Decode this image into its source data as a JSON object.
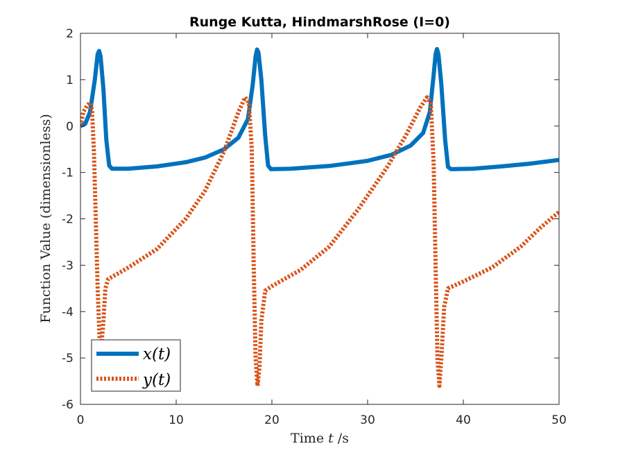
{
  "chart_data": {
    "type": "line",
    "title": "Runge Kutta, HindmarshRose (I=0)",
    "xlabel": "Time $t$ /s",
    "xlabel_parts": {
      "main": "Time ",
      "var": "t",
      "unit": " /s"
    },
    "ylabel": "Function Value (dimensionless)",
    "xlim": [
      0,
      50
    ],
    "ylim": [
      -6,
      2
    ],
    "xticks": [
      0,
      10,
      20,
      30,
      40,
      50
    ],
    "yticks": [
      2,
      1,
      0,
      -1,
      -2,
      -3,
      -4,
      -5,
      -6
    ],
    "xtick_labels": [
      "0",
      "10",
      "20",
      "30",
      "40",
      "50"
    ],
    "ytick_labels": [
      "2",
      "1",
      "0",
      "-1",
      "-2",
      "-3",
      "-4",
      "-5",
      "-6"
    ],
    "grid": false,
    "legend": "bottom-left",
    "series": [
      {
        "name": "x(t)",
        "color": "#0072BD",
        "style": "solid",
        "points": [
          [
            0,
            0
          ],
          [
            0.5,
            0.05
          ],
          [
            1.0,
            0.3
          ],
          [
            1.5,
            1.0
          ],
          [
            1.8,
            1.55
          ],
          [
            1.95,
            1.62
          ],
          [
            2.1,
            1.5
          ],
          [
            2.4,
            0.8
          ],
          [
            2.7,
            -0.3
          ],
          [
            3.0,
            -0.85
          ],
          [
            3.3,
            -0.92
          ],
          [
            5,
            -0.92
          ],
          [
            8,
            -0.87
          ],
          [
            11,
            -0.78
          ],
          [
            13,
            -0.68
          ],
          [
            15,
            -0.5
          ],
          [
            16.5,
            -0.25
          ],
          [
            17.5,
            0.15
          ],
          [
            18.0,
            0.9
          ],
          [
            18.3,
            1.5
          ],
          [
            18.45,
            1.65
          ],
          [
            18.6,
            1.58
          ],
          [
            18.9,
            1.0
          ],
          [
            19.3,
            -0.2
          ],
          [
            19.6,
            -0.85
          ],
          [
            19.9,
            -0.93
          ],
          [
            22,
            -0.92
          ],
          [
            26,
            -0.86
          ],
          [
            30,
            -0.75
          ],
          [
            32.5,
            -0.62
          ],
          [
            34.5,
            -0.42
          ],
          [
            35.8,
            -0.15
          ],
          [
            36.5,
            0.3
          ],
          [
            36.9,
            1.1
          ],
          [
            37.1,
            1.55
          ],
          [
            37.25,
            1.66
          ],
          [
            37.4,
            1.55
          ],
          [
            37.7,
            0.9
          ],
          [
            38.1,
            -0.3
          ],
          [
            38.4,
            -0.88
          ],
          [
            38.7,
            -0.93
          ],
          [
            41,
            -0.92
          ],
          [
            44,
            -0.87
          ],
          [
            47,
            -0.81
          ],
          [
            50,
            -0.73
          ]
        ]
      },
      {
        "name": "y(t)",
        "color": "#D95319",
        "style": "dotted",
        "points": [
          [
            0,
            0
          ],
          [
            0.3,
            0.3
          ],
          [
            0.7,
            0.45
          ],
          [
            1.0,
            0.5
          ],
          [
            1.2,
            0.35
          ],
          [
            1.4,
            -0.5
          ],
          [
            1.6,
            -2.0
          ],
          [
            1.8,
            -3.5
          ],
          [
            2.0,
            -4.6
          ],
          [
            2.2,
            -4.7
          ],
          [
            2.4,
            -4.2
          ],
          [
            2.6,
            -3.5
          ],
          [
            2.9,
            -3.3
          ],
          [
            5,
            -3.05
          ],
          [
            8,
            -2.65
          ],
          [
            11,
            -2.0
          ],
          [
            13,
            -1.4
          ],
          [
            15,
            -0.55
          ],
          [
            16.5,
            0.3
          ],
          [
            17.2,
            0.62
          ],
          [
            17.6,
            0.5
          ],
          [
            17.9,
            -0.5
          ],
          [
            18.1,
            -3.0
          ],
          [
            18.3,
            -5.0
          ],
          [
            18.5,
            -5.6
          ],
          [
            18.7,
            -5.2
          ],
          [
            18.9,
            -4.2
          ],
          [
            19.3,
            -3.55
          ],
          [
            20,
            -3.45
          ],
          [
            23,
            -3.1
          ],
          [
            26,
            -2.6
          ],
          [
            29,
            -1.8
          ],
          [
            32,
            -0.9
          ],
          [
            34,
            -0.2
          ],
          [
            35.5,
            0.4
          ],
          [
            36.2,
            0.62
          ],
          [
            36.6,
            0.5
          ],
          [
            36.9,
            -0.8
          ],
          [
            37.1,
            -3.0
          ],
          [
            37.3,
            -5.0
          ],
          [
            37.5,
            -5.6
          ],
          [
            37.7,
            -5.0
          ],
          [
            38.0,
            -3.9
          ],
          [
            38.4,
            -3.5
          ],
          [
            40,
            -3.35
          ],
          [
            43,
            -3.05
          ],
          [
            46,
            -2.6
          ],
          [
            48,
            -2.2
          ],
          [
            50,
            -1.85
          ]
        ]
      }
    ]
  }
}
